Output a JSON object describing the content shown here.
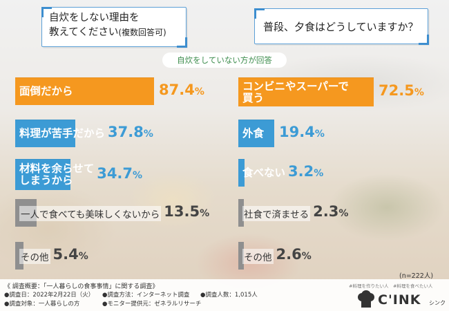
{
  "questions": {
    "left_line1": "自炊をしない理由を",
    "left_line2_main": "教えてください",
    "left_line2_small": "(複数回答可)",
    "right": "普段、夕食はどうしていますか？"
  },
  "note": "自炊をしていない方が回答",
  "sample_size": "(n=222人)",
  "colors": {
    "orange": "#f5981f",
    "blue": "#3c9bd5",
    "gray": "#8f8f8f",
    "frame_blue": "#3d8ecf"
  },
  "chart_data": [
    {
      "type": "bar",
      "orientation": "horizontal",
      "title": "自炊をしない理由を教えてください(複数回答可)",
      "unit": "%",
      "categories": [
        "面倒だから",
        "料理が苦手だから",
        "材料を余らせてしまうから",
        "一人で食べても美味しくないから",
        "その他"
      ],
      "label_lines": [
        [
          "面倒だから"
        ],
        [
          "料理が苦手だから"
        ],
        [
          "材料を余らせて",
          "しまうから"
        ],
        [
          "一人で食べても美味しくないから"
        ],
        [
          "その他"
        ]
      ],
      "values": [
        87.4,
        37.8,
        34.7,
        13.5,
        5.4
      ],
      "value_labels": [
        "87.4",
        "37.8",
        "34.7",
        "13.5",
        "5.4"
      ],
      "bar_colors": [
        "orange",
        "blue",
        "blue",
        "gray",
        "gray"
      ]
    },
    {
      "type": "bar",
      "orientation": "horizontal",
      "title": "普段、夕食はどうしていますか？",
      "unit": "%",
      "categories": [
        "コンビニやスーパーで買う",
        "外食",
        "食べない",
        "社食で済ませる",
        "その他"
      ],
      "label_lines": [
        [
          "コンビニやスーパーで",
          "買う"
        ],
        [
          "外食"
        ],
        [
          "食べない"
        ],
        [
          "社食で済ませる"
        ],
        [
          "その他"
        ]
      ],
      "values": [
        72.5,
        19.4,
        3.2,
        2.3,
        2.6
      ],
      "value_labels": [
        "72.5",
        "19.4",
        "3.2",
        "2.3",
        "2.6"
      ],
      "bar_colors": [
        "orange",
        "blue",
        "blue",
        "gray",
        "gray"
      ]
    }
  ],
  "footer": {
    "title": "《 調査概要：「一人暮らしの食事事情」に関する調査》",
    "date": "●調査日：2022年2月22日（火）",
    "method": "●調査方法：インターネット調査",
    "count": "●調査人数：1,015人",
    "target": "●調査対象：一人暮らしの方",
    "monitor": "●モニター提供元：ゼネラルリサーチ"
  },
  "logo": {
    "tagline": "#料理を作りたい人　#料理を食べたい人",
    "brand": "C'INK",
    "sub": "シンク",
    "icon": "chef-hat-icon"
  }
}
